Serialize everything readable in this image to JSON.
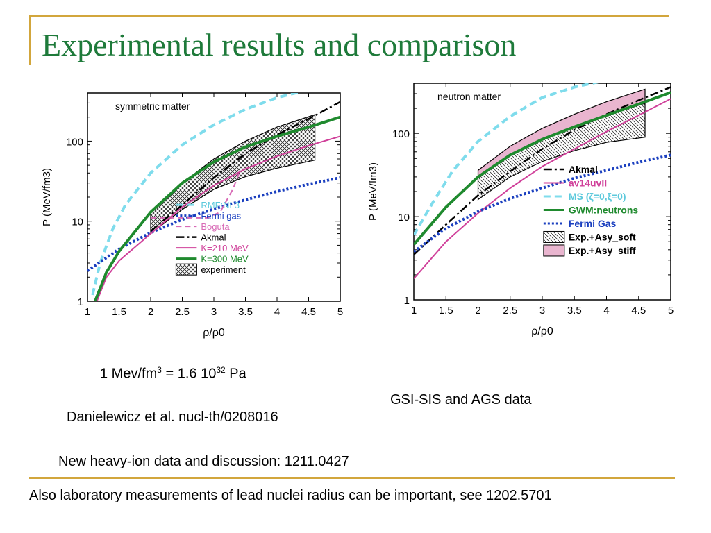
{
  "slide": {
    "title": "Experimental results and comparison",
    "colors": {
      "title": "#1e7a3a",
      "rule": "#d2a63c"
    },
    "captions": {
      "conversion_prefix": "1 Mev/fm",
      "conversion_sup1": "3",
      "conversion_middle": " = 1.6 10",
      "conversion_sup2": "32",
      "conversion_suffix": " Pa",
      "danielewicz": "Danielewicz et al. nucl-th/0208016",
      "gsi": "GSI-SIS and AGS data",
      "new_data": "New heavy-ion data and discussion: 1211.0427",
      "lead": "Also laboratory measurements of lead nuclei radius can be important, see 1202.5701"
    }
  },
  "chart_data": [
    {
      "id": "left",
      "type": "line",
      "title": "symmetric matter",
      "xlabel": "ρ/ρ0",
      "ylabel": "P (MeV/fm3)",
      "xlim": [
        1,
        5
      ],
      "ylim": [
        1,
        400
      ],
      "y_scale": "log",
      "x_ticks": [
        "1",
        "1.5",
        "2",
        "2.5",
        "3",
        "3.5",
        "4",
        "4.5",
        "5"
      ],
      "y_ticks": [
        "1",
        "10",
        "100"
      ],
      "legend_position": "bottom-right",
      "series": [
        {
          "name": "RMF:NL3",
          "color": "#7fdcec",
          "dash": "10,6",
          "width": 4,
          "x": [
            1.08,
            1.2,
            1.4,
            1.6,
            2.0,
            2.5,
            3.0,
            3.5,
            4.0,
            4.4
          ],
          "y": [
            1.2,
            3.0,
            8,
            16,
            40,
            90,
            160,
            250,
            350,
            420
          ]
        },
        {
          "name": "Fermi gas",
          "color": "#1a3fbf",
          "dash": "3,3",
          "width": 4,
          "x": [
            1.0,
            1.5,
            2.0,
            2.5,
            3.0,
            3.5,
            4.0,
            4.5,
            5.0
          ],
          "y": [
            2.4,
            4.5,
            7.2,
            10.5,
            14.2,
            18.5,
            23.5,
            29,
            35
          ]
        },
        {
          "name": "Boguta",
          "color": "#d86ab6",
          "dash": "8,5",
          "width": 2,
          "x": [
            2.0,
            2.3,
            2.6,
            2.9,
            3.1,
            3.3,
            3.4
          ],
          "y": [
            11,
            11,
            11,
            11,
            13,
            25,
            40
          ]
        },
        {
          "name": "Akmal",
          "color": "#000000",
          "dash": "12,4,3,4",
          "width": 2.5,
          "x": [
            2.0,
            2.5,
            3.0,
            3.5,
            4.0,
            4.5,
            5.0
          ],
          "y": [
            7.5,
            16,
            35,
            70,
            120,
            190,
            310
          ]
        },
        {
          "name": "K=210 MeV",
          "color": "#d0409a",
          "dash": "",
          "width": 2,
          "x": [
            1.15,
            1.3,
            1.5,
            2.0,
            2.5,
            3.0,
            3.5,
            4.0,
            4.5,
            5.0
          ],
          "y": [
            1.0,
            2.0,
            3.2,
            7,
            15,
            28,
            45,
            65,
            88,
            115
          ]
        },
        {
          "name": "K=300 MeV",
          "color": "#1f8a2e",
          "dash": "",
          "width": 4,
          "x": [
            1.12,
            1.3,
            1.5,
            2.0,
            2.5,
            3.0,
            3.5,
            4.0,
            4.5,
            5.0
          ],
          "y": [
            1.0,
            2.3,
            4.2,
            13,
            30,
            55,
            85,
            115,
            150,
            200
          ]
        }
      ],
      "bands": [
        {
          "name": "experiment",
          "color": "#222222",
          "pattern": "crosshatch",
          "upper": {
            "x": [
              2.0,
              2.5,
              3.0,
              3.5,
              4.0,
              4.6
            ],
            "y": [
              13,
              30,
              60,
              100,
              150,
              215
            ]
          },
          "lower": {
            "x": [
              2.0,
              2.5,
              3.0,
              3.5,
              4.0,
              4.6
            ],
            "y": [
              7,
              14,
              25,
              36,
              46,
              58
            ]
          }
        }
      ]
    },
    {
      "id": "right",
      "type": "line",
      "title": "neutron matter",
      "xlabel": "ρ/ρ0",
      "ylabel": "P (MeV/fm3)",
      "xlim": [
        1,
        5
      ],
      "ylim": [
        1,
        400
      ],
      "y_scale": "log",
      "x_ticks": [
        "1",
        "1.5",
        "2",
        "2.5",
        "3",
        "3.5",
        "4",
        "4.5",
        "5"
      ],
      "y_ticks": [
        "1",
        "10",
        "100"
      ],
      "legend_position": "bottom-right",
      "series": [
        {
          "name": "Akmal",
          "color": "#000000",
          "dash": "12,4,3,4",
          "width": 2.5,
          "x": [
            1.0,
            1.5,
            2.0,
            2.5,
            3.0,
            3.5,
            4.0,
            4.5,
            5.0
          ],
          "y": [
            3.5,
            8,
            18,
            35,
            65,
            110,
            170,
            250,
            360
          ]
        },
        {
          "name": "av14uvII",
          "color": "#d0409a",
          "dash": "",
          "width": 2,
          "x": [
            1.0,
            1.5,
            2.0,
            2.5,
            3.0,
            3.5,
            4.0,
            4.5,
            5.0
          ],
          "y": [
            1.8,
            5,
            11,
            22,
            40,
            65,
            105,
            165,
            260
          ]
        },
        {
          "name": "MS (ζ=0,ξ=0)",
          "color": "#7fdcec",
          "dash": "10,6",
          "width": 4,
          "x": [
            1.0,
            1.3,
            1.6,
            2.0,
            2.5,
            3.0,
            3.5,
            3.9
          ],
          "y": [
            6,
            15,
            35,
            80,
            160,
            270,
            360,
            420
          ]
        },
        {
          "name": "GWM:neutrons",
          "color": "#1f8a2e",
          "dash": "",
          "width": 4,
          "x": [
            1.0,
            1.5,
            2.0,
            2.5,
            3.0,
            3.5,
            4.0,
            4.5,
            5.0
          ],
          "y": [
            4.6,
            13,
            30,
            55,
            85,
            120,
            165,
            225,
            310
          ]
        },
        {
          "name": "Fermi Gas",
          "color": "#1a3fbf",
          "dash": "3,3",
          "width": 4,
          "x": [
            1.0,
            1.5,
            2.0,
            2.5,
            3.0,
            3.5,
            4.0,
            4.5,
            5.0
          ],
          "y": [
            3.8,
            7.2,
            11.5,
            16.5,
            22,
            29,
            36,
            45,
            55
          ]
        }
      ],
      "bands": [
        {
          "name": "Exp.+Asy_soft",
          "color": "#222222",
          "pattern": "diagonal",
          "upper": {
            "x": [
              2.0,
              2.5,
              3.0,
              3.5,
              4.0,
              4.6
            ],
            "y": [
              29,
              55,
              85,
              120,
              165,
              230
            ]
          },
          "lower": {
            "x": [
              2.0,
              2.5,
              3.0,
              3.5,
              4.0,
              4.6
            ],
            "y": [
              16,
              30,
              46,
              62,
              78,
              90
            ]
          }
        },
        {
          "name": "Exp.+Asy_stiff",
          "color": "#e9b5cf",
          "pattern": "solid",
          "upper": {
            "x": [
              2.0,
              2.5,
              3.0,
              3.5,
              4.0,
              4.6
            ],
            "y": [
              36,
              70,
              115,
              170,
              240,
              340
            ]
          },
          "lower": {
            "x": [
              2.0,
              2.5,
              3.0,
              3.5,
              4.0,
              4.6
            ],
            "y": [
              29,
              55,
              85,
              120,
              165,
              230
            ]
          }
        }
      ]
    }
  ]
}
